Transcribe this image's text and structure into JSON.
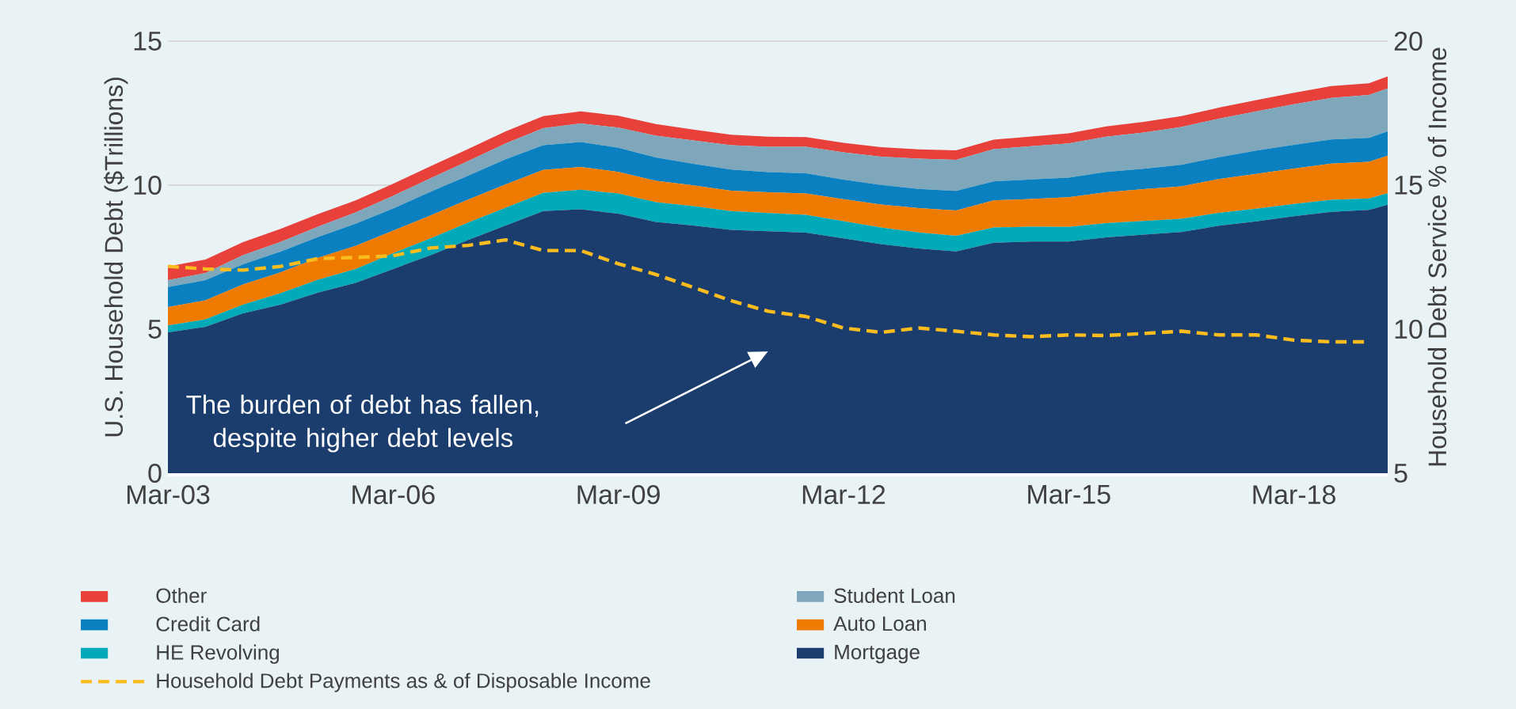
{
  "chart_data": {
    "type": "area",
    "stacked": true,
    "ylabel": "U.S. Household Debt ($Trillions)",
    "y2label": "Household Debt Service % of Income",
    "x": [
      "2003-03",
      "2003-09",
      "2004-03",
      "2004-09",
      "2005-03",
      "2005-09",
      "2006-03",
      "2006-09",
      "2007-03",
      "2007-09",
      "2008-03",
      "2008-09",
      "2009-03",
      "2009-09",
      "2010-03",
      "2010-09",
      "2011-03",
      "2011-09",
      "2012-03",
      "2012-09",
      "2013-03",
      "2013-09",
      "2014-03",
      "2014-09",
      "2015-03",
      "2015-09",
      "2016-03",
      "2016-09",
      "2017-03",
      "2017-09",
      "2018-03",
      "2018-09",
      "2019-03",
      "2019-06"
    ],
    "xlim": [
      "2003-03",
      "2019-06"
    ],
    "xticks": [
      {
        "value": "2003-03",
        "label": "Mar-03"
      },
      {
        "value": "2006-03",
        "label": "Mar-06"
      },
      {
        "value": "2009-03",
        "label": "Mar-09"
      },
      {
        "value": "2012-03",
        "label": "Mar-12"
      },
      {
        "value": "2015-03",
        "label": "Mar-15"
      },
      {
        "value": "2018-03",
        "label": "Mar-18"
      }
    ],
    "ylim": [
      0,
      15
    ],
    "yticks": [
      0,
      5,
      10,
      15
    ],
    "y2lim": [
      5,
      20
    ],
    "y2ticks": [
      5,
      10,
      15,
      20
    ],
    "grid": "y",
    "legend": "bottom",
    "series": [
      {
        "name": "Mortgage",
        "color": "#1a3d6e",
        "values": [
          4.89,
          5.08,
          5.55,
          5.85,
          6.27,
          6.61,
          7.09,
          7.57,
          8.1,
          8.6,
          9.1,
          9.16,
          9.01,
          8.72,
          8.6,
          8.45,
          8.4,
          8.35,
          8.15,
          7.95,
          7.8,
          7.7,
          8.0,
          8.04,
          8.04,
          8.19,
          8.28,
          8.37,
          8.59,
          8.74,
          8.92,
          9.07,
          9.14,
          9.32
        ]
      },
      {
        "name": "HE Revolving",
        "color": "#00aab8",
        "values": [
          0.24,
          0.26,
          0.3,
          0.4,
          0.45,
          0.48,
          0.55,
          0.58,
          0.6,
          0.62,
          0.63,
          0.68,
          0.7,
          0.69,
          0.67,
          0.65,
          0.63,
          0.62,
          0.6,
          0.58,
          0.56,
          0.54,
          0.53,
          0.52,
          0.51,
          0.49,
          0.48,
          0.46,
          0.45,
          0.44,
          0.43,
          0.42,
          0.4,
          0.4
        ]
      },
      {
        "name": "Auto Loan",
        "color": "#ef7a00",
        "values": [
          0.64,
          0.66,
          0.7,
          0.72,
          0.76,
          0.8,
          0.78,
          0.8,
          0.8,
          0.81,
          0.8,
          0.79,
          0.75,
          0.74,
          0.72,
          0.71,
          0.72,
          0.74,
          0.76,
          0.8,
          0.84,
          0.88,
          0.94,
          0.96,
          1.03,
          1.07,
          1.1,
          1.13,
          1.17,
          1.21,
          1.23,
          1.26,
          1.27,
          1.3
        ]
      },
      {
        "name": "Credit Card",
        "color": "#0b80c0",
        "values": [
          0.69,
          0.7,
          0.7,
          0.72,
          0.72,
          0.77,
          0.77,
          0.82,
          0.83,
          0.87,
          0.86,
          0.87,
          0.84,
          0.81,
          0.75,
          0.73,
          0.7,
          0.7,
          0.68,
          0.68,
          0.67,
          0.68,
          0.66,
          0.68,
          0.68,
          0.71,
          0.71,
          0.75,
          0.76,
          0.81,
          0.82,
          0.84,
          0.83,
          0.85
        ]
      },
      {
        "name": "Student Loan",
        "color": "#7fa7bb",
        "values": [
          0.24,
          0.25,
          0.32,
          0.34,
          0.36,
          0.39,
          0.44,
          0.47,
          0.51,
          0.55,
          0.59,
          0.64,
          0.7,
          0.76,
          0.81,
          0.85,
          0.88,
          0.92,
          0.95,
          0.98,
          1.05,
          1.08,
          1.12,
          1.15,
          1.19,
          1.22,
          1.26,
          1.31,
          1.34,
          1.36,
          1.41,
          1.44,
          1.49,
          1.49
        ]
      },
      {
        "name": "Other",
        "color": "#e8403a",
        "values": [
          0.48,
          0.47,
          0.45,
          0.45,
          0.44,
          0.42,
          0.42,
          0.42,
          0.42,
          0.42,
          0.42,
          0.42,
          0.41,
          0.4,
          0.38,
          0.36,
          0.35,
          0.34,
          0.33,
          0.33,
          0.32,
          0.33,
          0.33,
          0.34,
          0.35,
          0.36,
          0.37,
          0.38,
          0.38,
          0.39,
          0.4,
          0.41,
          0.41,
          0.42
        ]
      },
      {
        "name": "Household Debt Payments as & of Disposable Income",
        "type": "line",
        "axis": "y2",
        "line_style": "dashed",
        "color": "#fbbc1e",
        "values": [
          12.18,
          12.09,
          12.05,
          12.18,
          12.45,
          12.49,
          12.55,
          12.82,
          12.91,
          13.1,
          12.73,
          12.73,
          12.27,
          11.9,
          11.45,
          10.99,
          10.62,
          10.44,
          10.04,
          9.89,
          10.04,
          9.93,
          9.8,
          9.74,
          9.8,
          9.78,
          9.85,
          9.93,
          9.8,
          9.8,
          9.62,
          9.56,
          9.56,
          null
        ]
      }
    ],
    "annotations": [
      "The burden of debt has fallen, despite higher debt levels"
    ]
  }
}
